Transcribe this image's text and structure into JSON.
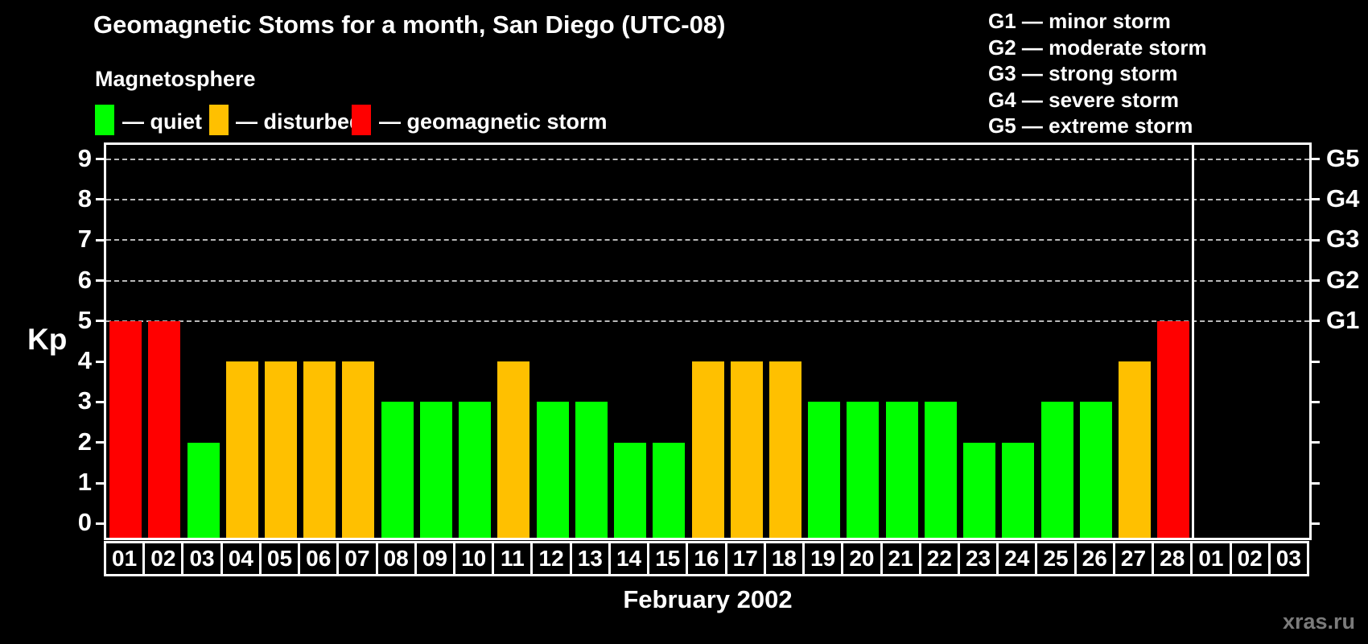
{
  "title": "Geomagnetic Stoms for a month, San Diego (UTC-08)",
  "watermark": "xras.ru",
  "legend": {
    "heading": "Magnetosphere",
    "items": [
      {
        "key": "quiet",
        "label": "— quiet",
        "color": "#00ff00"
      },
      {
        "key": "disturbed",
        "label": "— disturbed",
        "color": "#ffc000"
      },
      {
        "key": "storm",
        "label": "— geomagnetic storm",
        "color": "#ff0000"
      }
    ]
  },
  "storm_scale_legend": [
    "G1 — minor storm",
    "G2 — moderate storm",
    "G3 — strong storm",
    "G4 — severe storm",
    "G5 — extreme storm"
  ],
  "chart_data": {
    "type": "bar",
    "title": "Geomagnetic Stoms for a month, San Diego (UTC-08)",
    "xlabel": "February 2002",
    "ylabel": "Kp",
    "ylim": [
      0,
      9
    ],
    "y_ticks": [
      0,
      1,
      2,
      3,
      4,
      5,
      6,
      7,
      8,
      9
    ],
    "gridlines_at": [
      5,
      6,
      7,
      8,
      9
    ],
    "grid_style": "dashed",
    "legend_position": "top",
    "right_axis_labels": [
      {
        "kp": 5,
        "label": "G1"
      },
      {
        "kp": 6,
        "label": "G2"
      },
      {
        "kp": 7,
        "label": "G3"
      },
      {
        "kp": 8,
        "label": "G4"
      },
      {
        "kp": 9,
        "label": "G5"
      }
    ],
    "categories": [
      "01",
      "02",
      "03",
      "04",
      "05",
      "06",
      "07",
      "08",
      "09",
      "10",
      "11",
      "12",
      "13",
      "14",
      "15",
      "16",
      "17",
      "18",
      "19",
      "20",
      "21",
      "22",
      "23",
      "24",
      "25",
      "26",
      "27",
      "28",
      "01",
      "02",
      "03"
    ],
    "values": [
      5,
      5,
      2,
      4,
      4,
      4,
      4,
      3,
      3,
      3,
      4,
      3,
      3,
      2,
      2,
      4,
      4,
      4,
      3,
      3,
      3,
      3,
      2,
      2,
      3,
      3,
      4,
      5,
      null,
      null,
      null
    ],
    "statuses": [
      "storm",
      "storm",
      "quiet",
      "disturbed",
      "disturbed",
      "disturbed",
      "disturbed",
      "quiet",
      "quiet",
      "quiet",
      "disturbed",
      "quiet",
      "quiet",
      "quiet",
      "quiet",
      "disturbed",
      "disturbed",
      "disturbed",
      "quiet",
      "quiet",
      "quiet",
      "quiet",
      "quiet",
      "quiet",
      "quiet",
      "quiet",
      "disturbed",
      "storm",
      null,
      null,
      null
    ],
    "status_colors": {
      "quiet": "#00ff00",
      "disturbed": "#ffc000",
      "storm": "#ff0000"
    },
    "separator_after_index": 27
  }
}
